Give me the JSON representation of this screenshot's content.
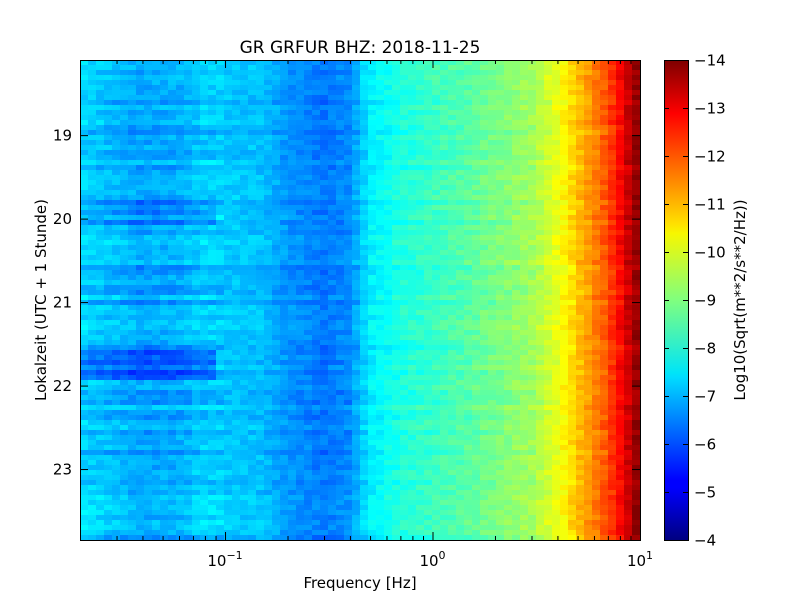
{
  "chart_data": {
    "type": "heatmap",
    "title": "GR GRFUR BHZ: 2018-11-25",
    "xlabel": "Frequency [Hz]",
    "ylabel": "Lokalzeit (UTC + 1 Stunde)",
    "x_scale": "log",
    "xlim": [
      0.02,
      10
    ],
    "x_ticks": [
      {
        "value": 0.1,
        "base": "10",
        "exp": "−1"
      },
      {
        "value": 1,
        "base": "10",
        "exp": "0"
      },
      {
        "value": 10,
        "base": "10",
        "exp": "1"
      }
    ],
    "ylim": [
      18.1,
      23.85
    ],
    "y_inverted": true,
    "y_ticks": [
      19,
      20,
      21,
      22,
      23
    ],
    "y_tick_labels": [
      "19",
      "20",
      "21",
      "22",
      "23"
    ],
    "colormap": "jet",
    "colorbar": {
      "label": "Log10(Sqrt(m**2/s**2/Hz))",
      "range": [
        -14,
        -4
      ],
      "ticks": [
        -4,
        -5,
        -6,
        -7,
        -8,
        -9,
        -10,
        -11,
        -12,
        -13,
        -14
      ],
      "tick_labels": [
        "−4",
        "−5",
        "−6",
        "−7",
        "−8",
        "−9",
        "−10",
        "−11",
        "−12",
        "−13",
        "−14"
      ]
    },
    "spectral_profile": {
      "frequency_hz": [
        0.02,
        0.04,
        0.06,
        0.08,
        0.1,
        0.15,
        0.2,
        0.3,
        0.4,
        0.5,
        0.7,
        1.0,
        1.5,
        2.0,
        3.0,
        4.0,
        5.0,
        6.0,
        7.0,
        8.0,
        9.0,
        10.0
      ],
      "level": [
        -7.3,
        -6.8,
        -6.9,
        -7.2,
        -7.2,
        -7.1,
        -6.7,
        -6.4,
        -6.6,
        -7.6,
        -8.0,
        -8.3,
        -8.6,
        -8.9,
        -9.3,
        -10.0,
        -10.8,
        -11.4,
        -12.0,
        -12.7,
        -13.4,
        -14.0
      ]
    },
    "time_events": [
      {
        "start_hour": 21.55,
        "end_hour": 21.95,
        "max_frequency_hz": 0.09,
        "change": 0.8
      },
      {
        "start_hour": 19.7,
        "end_hour": 20.1,
        "max_frequency_hz": 0.09,
        "change": 0.35
      }
    ]
  }
}
